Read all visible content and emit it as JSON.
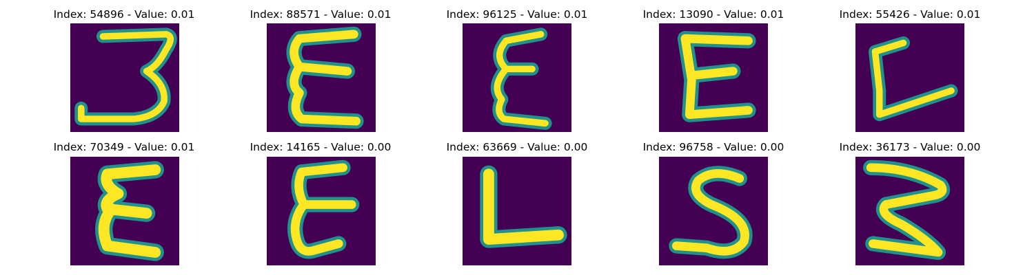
{
  "figure": {
    "colormap": {
      "background": "#440154",
      "mid": "#21918c",
      "edge": "#5ec962",
      "stroke": "#fde725"
    },
    "panels": [
      {
        "title": "Index: 54896 - Value: 0.01",
        "glyph": "3"
      },
      {
        "title": "Index: 88571 - Value: 0.01",
        "glyph": "Ɛ"
      },
      {
        "title": "Index: 96125 - Value: 0.01",
        "glyph": "Ɛ"
      },
      {
        "title": "Index: 13090 - Value: 0.01",
        "glyph": "E"
      },
      {
        "title": "Index: 55426 - Value: 0.01",
        "glyph": "L"
      },
      {
        "title": "Index: 70349 - Value: 0.01",
        "glyph": "Ɛ"
      },
      {
        "title": "Index: 14165 - Value: 0.00",
        "glyph": "Ɛ"
      },
      {
        "title": "Index: 63669 - Value: 0.00",
        "glyph": "L"
      },
      {
        "title": "Index: 96758 - Value: 0.00",
        "glyph": "S"
      },
      {
        "title": "Index: 36173 - Value: 0.00",
        "glyph": "Ʒ"
      }
    ]
  }
}
